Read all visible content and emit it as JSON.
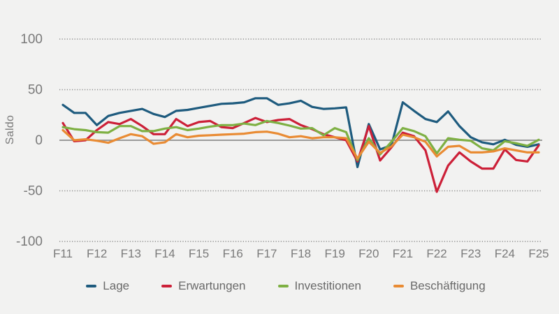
{
  "chart_data": {
    "type": "line",
    "title": "",
    "ylabel": "Saldo",
    "xlabel": "",
    "ylim": [
      -115,
      112
    ],
    "yticks": [
      100,
      50,
      0,
      -50,
      -100
    ],
    "grid": "dotted horizontal lines at -100, -50, 50, 100; solid gray line at 0",
    "legend_position": "bottom center",
    "points_per_year": 3,
    "x_tick_labels": [
      "F11",
      "F12",
      "F13",
      "F14",
      "F15",
      "F16",
      "F17",
      "F18",
      "F19",
      "F20",
      "F21",
      "F22",
      "F23",
      "F24",
      "F25"
    ],
    "colors": {
      "background": "#f2f2f1",
      "axis_text": "#7a7a7a",
      "grid_line": "#8c8c8c",
      "zero_line": "#9b9b9b",
      "legend_text": "#696969"
    },
    "series": [
      {
        "name": "Lage",
        "color": "#1e5b7e",
        "values": [
          35,
          27,
          27,
          15,
          24,
          27,
          29,
          31,
          26,
          23,
          29,
          30,
          32,
          34,
          36,
          36.5,
          37.5,
          41.5,
          41.5,
          35,
          36.5,
          39,
          33,
          31,
          31.5,
          32.5,
          -26.5,
          16,
          -9,
          -5,
          37.5,
          29,
          21,
          18,
          28.5,
          14,
          3,
          -2,
          -4,
          0.5,
          -4.5,
          -6.5,
          -4
        ]
      },
      {
        "name": "Erwartungen",
        "color": "#cc2038",
        "values": [
          17,
          -1,
          0,
          10,
          18,
          16,
          21,
          14,
          6,
          6,
          21,
          14,
          18,
          19,
          13,
          12,
          17,
          22,
          18,
          20,
          21,
          15,
          11,
          6,
          3,
          0,
          -21,
          14,
          -20,
          -7,
          7.5,
          4,
          -10,
          -51,
          -25,
          -12,
          -21,
          -28,
          -28,
          -9,
          -19.5,
          -21,
          -5
        ]
      },
      {
        "name": "Investitionen",
        "color": "#7eb043",
        "values": [
          13,
          11,
          10,
          8,
          7.5,
          14,
          14,
          9,
          9,
          11.5,
          13,
          10,
          11.5,
          13.5,
          15,
          15,
          16.5,
          15,
          19,
          17,
          14.5,
          11.5,
          12,
          5,
          12,
          8,
          -19.5,
          2,
          -14,
          -1.5,
          12,
          9,
          4,
          -13,
          2,
          0.5,
          -0.5,
          -8,
          -10,
          -1,
          -3,
          -5.5,
          0.5
        ]
      },
      {
        "name": "Beschäftigung",
        "color": "#e98b33",
        "values": [
          10,
          0,
          1,
          -0.5,
          -2.5,
          2,
          6,
          4,
          -3.5,
          -2,
          6,
          3,
          4.5,
          5,
          5.5,
          6,
          6.5,
          8,
          8.5,
          6.5,
          3,
          4,
          2,
          3,
          3,
          2,
          -18,
          -1.5,
          -12.5,
          -6,
          5.5,
          3,
          -1.5,
          -16,
          -6.5,
          -5.5,
          -12,
          -12,
          -11,
          -8,
          -10,
          -12,
          -12
        ]
      }
    ]
  }
}
